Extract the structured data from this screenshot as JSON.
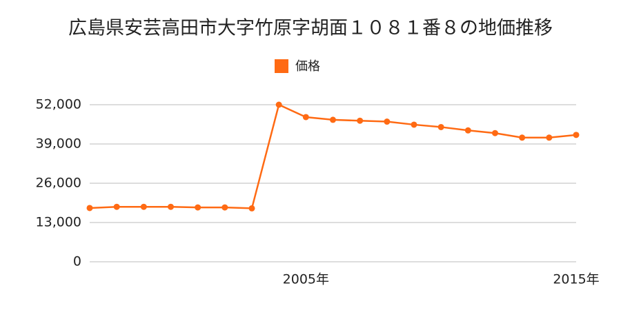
{
  "chart_data": {
    "type": "line",
    "title": "広島県安芸高田市大字竹原字胡面１０８１番８の地価推移",
    "x": [
      1997,
      1998,
      1999,
      2000,
      2001,
      2002,
      2003,
      2004,
      2005,
      2006,
      2007,
      2008,
      2009,
      2010,
      2011,
      2012,
      2013,
      2014,
      2015
    ],
    "series": [
      {
        "name": "価格",
        "color": "#ff6a13",
        "values": [
          17800,
          18200,
          18200,
          18200,
          18000,
          18000,
          17700,
          52000,
          47900,
          47000,
          46700,
          46400,
          45400,
          44600,
          43500,
          42600,
          41100,
          41100,
          42000
        ]
      }
    ],
    "xlim": [
      1997,
      2015
    ],
    "xticks": [
      {
        "value": 2005,
        "label": "2005年"
      },
      {
        "value": 2015,
        "label": "2015年"
      }
    ],
    "ylim": [
      0,
      52000
    ],
    "yticks": [
      0,
      {
        "value": 13000,
        "label": "13,000"
      },
      {
        "value": 26000,
        "label": "26,000"
      },
      {
        "value": 39000,
        "label": "39,000"
      },
      {
        "value": 52000,
        "label": "52,000"
      }
    ],
    "grid": true
  }
}
